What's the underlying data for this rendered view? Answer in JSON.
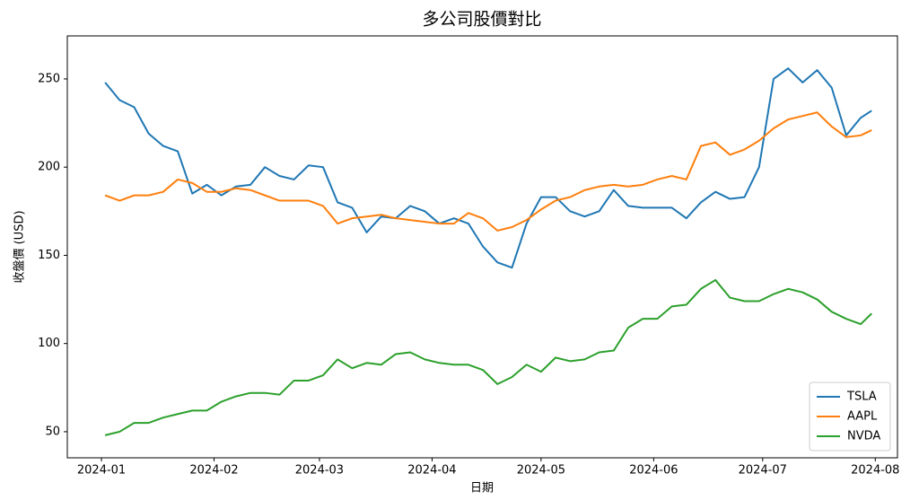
{
  "chart_data": {
    "type": "line",
    "title": "多公司股價對比",
    "xlabel": "日期",
    "ylabel": "收盤價 (USD)",
    "x": [
      1,
      5,
      9,
      13,
      17,
      21,
      25,
      29,
      33,
      37,
      41,
      45,
      49,
      53,
      57,
      61,
      65,
      69,
      73,
      77,
      81,
      85,
      89,
      93,
      97,
      101,
      105,
      109,
      113,
      117,
      121,
      125,
      129,
      133,
      137,
      141,
      145,
      149,
      153,
      157,
      161,
      165,
      169,
      173,
      177,
      181,
      185,
      189,
      193,
      197,
      201,
      205,
      209,
      212
    ],
    "series": [
      {
        "name": "TSLA",
        "color": "#1f77b4",
        "values": [
          248,
          238,
          234,
          219,
          212,
          209,
          185,
          190,
          184,
          189,
          190,
          200,
          195,
          193,
          201,
          200,
          180,
          177,
          163,
          172,
          171,
          178,
          175,
          168,
          171,
          168,
          155,
          146,
          143,
          168,
          183,
          183,
          175,
          172,
          175,
          187,
          178,
          177,
          177,
          177,
          171,
          180,
          186,
          182,
          183,
          200,
          250,
          256,
          248,
          255,
          245,
          218,
          228,
          232
        ]
      },
      {
        "name": "AAPL",
        "color": "#ff7f0e",
        "values": [
          184,
          181,
          184,
          184,
          186,
          193,
          191,
          186,
          186,
          188,
          187,
          184,
          181,
          181,
          181,
          178,
          168,
          171,
          172,
          173,
          171,
          170,
          169,
          168,
          168,
          174,
          171,
          164,
          166,
          170,
          176,
          181,
          183,
          187,
          189,
          190,
          189,
          190,
          193,
          195,
          193,
          212,
          214,
          207,
          210,
          215,
          222,
          227,
          229,
          231,
          223,
          217,
          218,
          221
        ]
      },
      {
        "name": "NVDA",
        "color": "#2ca02c",
        "values": [
          48,
          50,
          55,
          55,
          58,
          60,
          62,
          62,
          67,
          70,
          72,
          72,
          71,
          79,
          79,
          82,
          91,
          86,
          89,
          88,
          94,
          95,
          91,
          89,
          88,
          88,
          85,
          77,
          81,
          88,
          84,
          92,
          90,
          91,
          95,
          96,
          109,
          114,
          114,
          121,
          122,
          131,
          136,
          126,
          124,
          124,
          128,
          131,
          129,
          125,
          118,
          114,
          111,
          117
        ]
      }
    ],
    "xlim": [
      -9.4,
      219.1
    ],
    "xticks": [
      {
        "value": 0,
        "label": "2024-01"
      },
      {
        "value": 31,
        "label": "2024-02"
      },
      {
        "value": 60,
        "label": "2024-03"
      },
      {
        "value": 91,
        "label": "2024-04"
      },
      {
        "value": 121,
        "label": "2024-05"
      },
      {
        "value": 152,
        "label": "2024-06"
      },
      {
        "value": 182,
        "label": "2024-07"
      },
      {
        "value": 213,
        "label": "2024-08"
      }
    ],
    "ylim": [
      35.2,
      274.4
    ],
    "yticks": [
      50,
      100,
      150,
      200,
      250
    ],
    "legend": "lower right"
  }
}
